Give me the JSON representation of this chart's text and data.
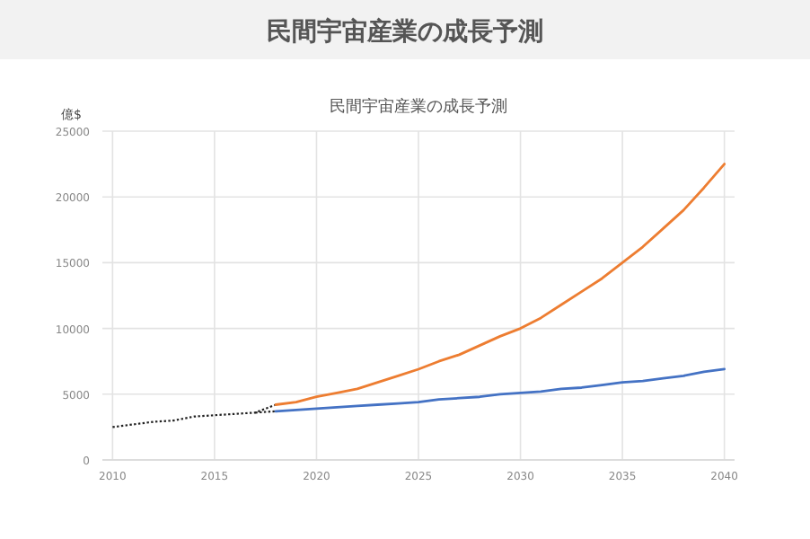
{
  "chart_data": {
    "type": "line",
    "title": "民間宇宙産業の成長予測",
    "subtitle": "民間宇宙産業の成長予測",
    "ylabel": "億$",
    "xlim": [
      2009.5,
      2040.5
    ],
    "xticks": [
      2010,
      2015,
      2020,
      2025,
      2030,
      2035,
      2040
    ],
    "ylim": [
      0,
      25000
    ],
    "yticks": [
      0,
      5000,
      10000,
      15000,
      20000,
      25000
    ],
    "grid": true,
    "marker": "none",
    "series": [
      {
        "color": "#222222",
        "line_style": "dotted",
        "x": [
          2010,
          2011,
          2012,
          2013,
          2014,
          2015,
          2016,
          2017,
          2018
        ],
        "values": [
          2500,
          2700,
          2900,
          3000,
          3300,
          3400,
          3500,
          3600,
          4200
        ]
      },
      {
        "color": "#222222",
        "line_style": "dotted",
        "x": [
          2017,
          2018
        ],
        "values": [
          3600,
          3700
        ]
      },
      {
        "color": "#4472c4",
        "line_style": "solid",
        "x": [
          2018,
          2019,
          2020,
          2021,
          2022,
          2023,
          2024,
          2025,
          2026,
          2027,
          2028,
          2029,
          2030,
          2031,
          2032,
          2033,
          2034,
          2035,
          2036,
          2037,
          2038,
          2039,
          2040
        ],
        "values": [
          3700,
          3800,
          3900,
          4000,
          4100,
          4200,
          4300,
          4400,
          4600,
          4700,
          4800,
          5000,
          5100,
          5200,
          5400,
          5500,
          5700,
          5900,
          6000,
          6200,
          6400,
          6700,
          6900
        ]
      },
      {
        "color": "#ed7d31",
        "line_style": "solid",
        "x": [
          2018,
          2019,
          2020,
          2021,
          2022,
          2023,
          2024,
          2025,
          2026,
          2027,
          2028,
          2029,
          2030,
          2031,
          2032,
          2033,
          2034,
          2035,
          2036,
          2037,
          2038,
          2039,
          2040
        ],
        "values": [
          4200,
          4400,
          4800,
          5100,
          5400,
          5900,
          6400,
          6900,
          7500,
          8000,
          8700,
          9400,
          10000,
          10800,
          11800,
          12800,
          13800,
          15000,
          16200,
          17600,
          19000,
          20700,
          22500
        ]
      }
    ]
  }
}
